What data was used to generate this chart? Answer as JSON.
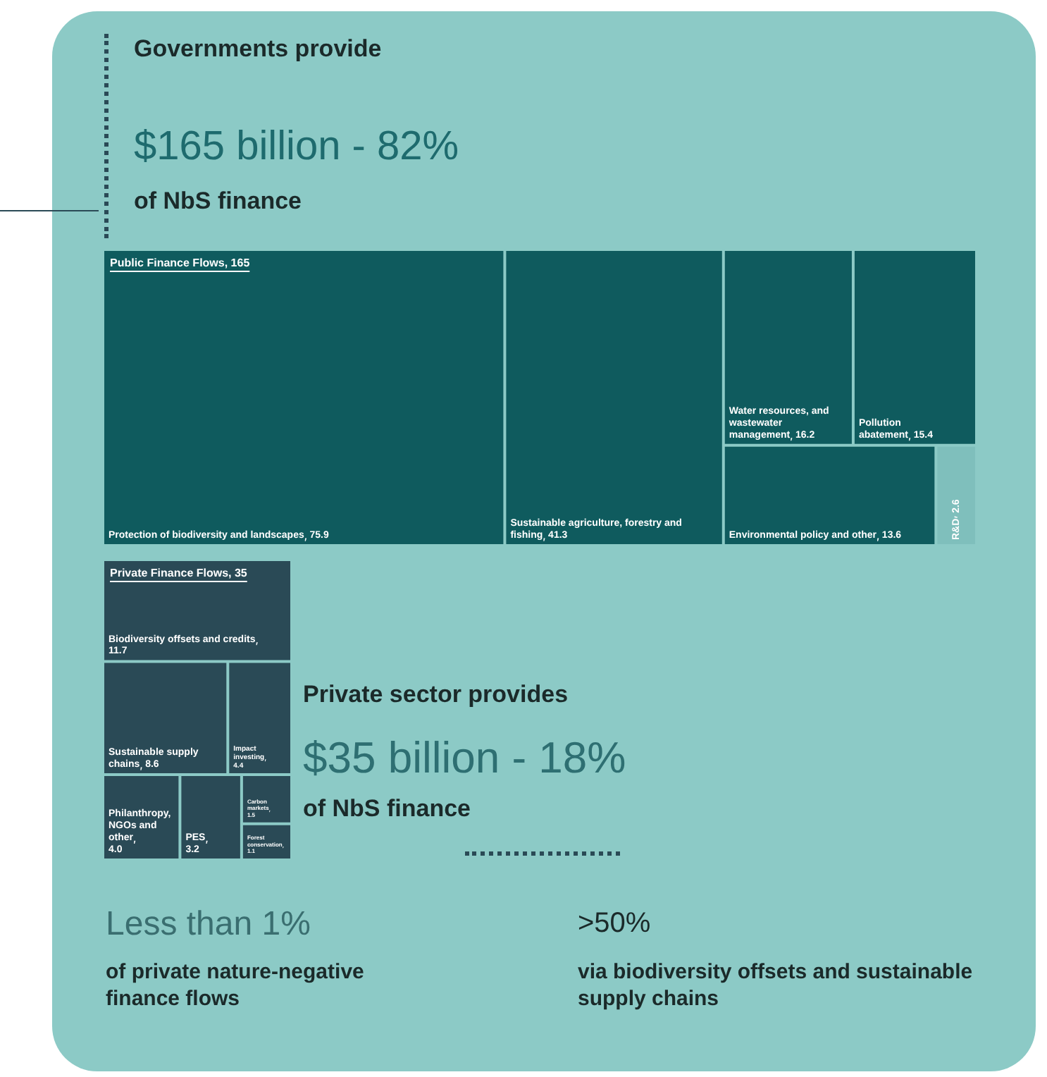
{
  "chart_data": [
    {
      "type": "other",
      "title": "Public Finance Flows, 165",
      "categories": [
        "Protection of biodiversity and landscapes",
        "Sustainable agriculture, forestry and fishing",
        "Water resources, and wastewater management",
        "Pollution abatement",
        "Environmental policy and other",
        "R&D"
      ],
      "values": [
        75.9,
        41.3,
        16.2,
        15.4,
        13.6,
        2.6
      ],
      "colors": [
        "#0f5b5e",
        "#0f5b5e",
        "#0f5b5e",
        "#0f5b5e",
        "#0f5b5e",
        "#7fbfbc"
      ],
      "data_labels": true,
      "annotations": [
        "Governments provide",
        "$165 billion - 82%",
        "of NbS finance"
      ]
    },
    {
      "type": "other",
      "title": "Private Finance Flows, 35",
      "categories": [
        "Biodiversity offsets and credits",
        "Sustainable supply chains",
        "Impact investing",
        "Philanthropy, NGOs and other",
        "PES",
        "Carbon markets",
        "Forest conservation"
      ],
      "data_labels": true,
      "values": [
        11.7,
        8.6,
        4.4,
        4.0,
        3.2,
        1.5,
        1.1
      ],
      "value_labels": [
        "11.7",
        "8.6",
        "4.4",
        "4.0",
        "3.2",
        "1.5",
        "1.1"
      ],
      "colors": [
        "#2a4a56",
        "#2a4a56",
        "#2a4a56",
        "#2a4a56",
        "#2a4a56",
        "#2a4a56",
        "#2a4a56"
      ],
      "annotations": [
        "Private sector provides",
        "$35 billion - 18%",
        "of NbS finance",
        "Less than 1%",
        "of private nature-negative finance flows",
        ">50%",
        "via biodiversity offsets and sustainable supply chains"
      ]
    }
  ]
}
